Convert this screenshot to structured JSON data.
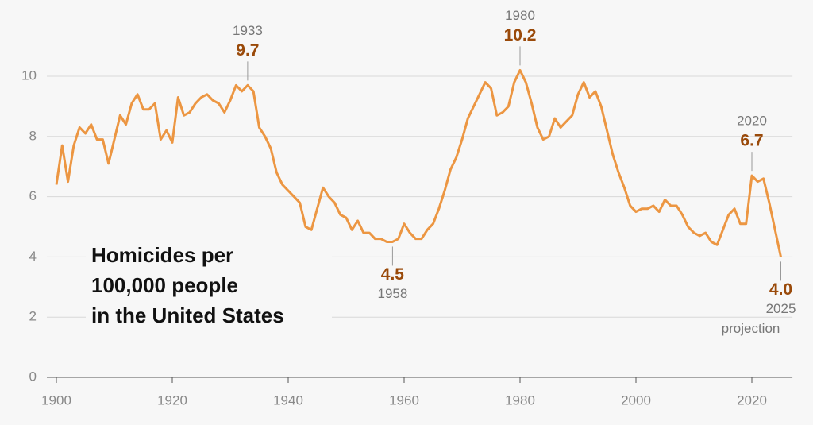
{
  "chart_data": {
    "type": "line",
    "title": [
      "Homicides per",
      "100,000 people",
      "in the United States"
    ],
    "x": [
      1900,
      1901,
      1902,
      1903,
      1904,
      1905,
      1906,
      1907,
      1908,
      1909,
      1910,
      1911,
      1912,
      1913,
      1914,
      1915,
      1916,
      1917,
      1918,
      1919,
      1920,
      1921,
      1922,
      1923,
      1924,
      1925,
      1926,
      1927,
      1928,
      1929,
      1930,
      1931,
      1932,
      1933,
      1934,
      1935,
      1936,
      1937,
      1938,
      1939,
      1940,
      1941,
      1942,
      1943,
      1944,
      1945,
      1946,
      1947,
      1948,
      1949,
      1950,
      1951,
      1952,
      1953,
      1954,
      1955,
      1956,
      1957,
      1958,
      1959,
      1960,
      1961,
      1962,
      1963,
      1964,
      1965,
      1966,
      1967,
      1968,
      1969,
      1970,
      1971,
      1972,
      1973,
      1974,
      1975,
      1976,
      1977,
      1978,
      1979,
      1980,
      1981,
      1982,
      1983,
      1984,
      1985,
      1986,
      1987,
      1988,
      1989,
      1990,
      1991,
      1992,
      1993,
      1994,
      1995,
      1996,
      1997,
      1998,
      1999,
      2000,
      2001,
      2002,
      2003,
      2004,
      2005,
      2006,
      2007,
      2008,
      2009,
      2010,
      2011,
      2012,
      2013,
      2014,
      2015,
      2016,
      2017,
      2018,
      2019,
      2020,
      2021,
      2022,
      2023,
      2024,
      2025
    ],
    "series": [
      {
        "color": "#ec9642",
        "values": [
          6.4,
          7.7,
          6.5,
          7.7,
          8.3,
          8.1,
          8.4,
          7.9,
          7.9,
          7.1,
          7.9,
          8.7,
          8.4,
          9.1,
          9.4,
          8.9,
          8.9,
          9.1,
          7.9,
          8.2,
          7.8,
          9.3,
          8.7,
          8.8,
          9.1,
          9.3,
          9.4,
          9.2,
          9.1,
          8.8,
          9.2,
          9.7,
          9.5,
          9.7,
          9.5,
          8.3,
          8.0,
          7.6,
          6.8,
          6.4,
          6.2,
          6.0,
          5.8,
          5.0,
          4.9,
          5.6,
          6.3,
          6.0,
          5.8,
          5.4,
          5.3,
          4.9,
          5.2,
          4.8,
          4.8,
          4.6,
          4.6,
          4.5,
          4.5,
          4.6,
          5.1,
          4.8,
          4.6,
          4.6,
          4.9,
          5.1,
          5.6,
          6.2,
          6.9,
          7.3,
          7.9,
          8.6,
          9.0,
          9.4,
          9.8,
          9.6,
          8.7,
          8.8,
          9.0,
          9.8,
          10.2,
          9.8,
          9.1,
          8.3,
          7.9,
          8.0,
          8.6,
          8.3,
          8.5,
          8.7,
          9.4,
          9.8,
          9.3,
          9.5,
          9.0,
          8.2,
          7.4,
          6.8,
          6.3,
          5.7,
          5.5,
          5.6,
          5.6,
          5.7,
          5.5,
          5.9,
          5.7,
          5.7,
          5.4,
          5.0,
          4.8,
          4.7,
          4.8,
          4.5,
          4.4,
          4.9,
          5.4,
          5.6,
          5.1,
          5.1,
          6.7,
          6.5,
          6.6,
          5.8,
          4.9,
          4.0
        ]
      }
    ],
    "annotations": [
      {
        "x": 1933,
        "y": 9.7,
        "value_label": "9.7",
        "position": "above"
      },
      {
        "x": 1958,
        "y": 4.5,
        "value_label": "4.5",
        "position": "below"
      },
      {
        "x": 1980,
        "y": 10.2,
        "value_label": "10.2",
        "position": "above"
      },
      {
        "x": 2020,
        "y": 6.7,
        "value_label": "6.7",
        "position": "above"
      },
      {
        "x": 2025,
        "y": 4.0,
        "value_label": "4.0",
        "position": "below",
        "note": "projection"
      }
    ],
    "xlim": [
      1898,
      2027
    ],
    "ylim": [
      0,
      11.5
    ],
    "xticks": [
      1900,
      1920,
      1940,
      1960,
      1980,
      2000,
      2020
    ],
    "yticks": [
      0,
      2,
      4,
      6,
      8,
      10
    ],
    "grid": true
  }
}
